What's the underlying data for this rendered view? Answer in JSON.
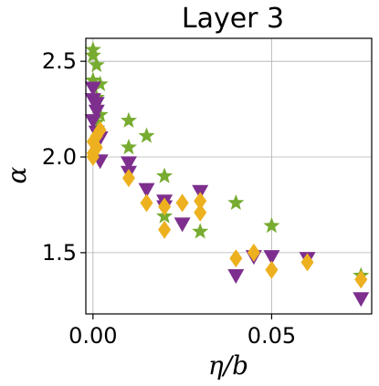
{
  "chart_data": {
    "type": "scatter",
    "title": "Layer 3",
    "xlabel": "η/b",
    "ylabel": "α",
    "xlim": [
      -0.002,
      0.078
    ],
    "ylim": [
      1.18,
      2.62
    ],
    "xticks": [
      0.0,
      0.05
    ],
    "xtick_labels": [
      "0.00",
      "0.05"
    ],
    "yticks": [
      1.5,
      2.0,
      2.5
    ],
    "ytick_labels": [
      "1.5",
      "2.0",
      "2.5"
    ],
    "grid": true,
    "legend": "none",
    "series": [
      {
        "marker": "star",
        "color": "#77ac30",
        "points": [
          [
            0.0,
            2.56
          ],
          [
            0.0,
            2.53
          ],
          [
            0.001,
            2.48
          ],
          [
            0.0,
            2.4
          ],
          [
            0.002,
            2.38
          ],
          [
            0.001,
            2.31
          ],
          [
            0.002,
            2.22
          ],
          [
            0.001,
            2.18
          ],
          [
            0.01,
            2.19
          ],
          [
            0.01,
            2.05
          ],
          [
            0.015,
            2.11
          ],
          [
            0.02,
            1.9
          ],
          [
            0.02,
            1.69
          ],
          [
            0.03,
            1.61
          ],
          [
            0.04,
            1.76
          ],
          [
            0.05,
            1.64
          ],
          [
            0.075,
            1.38
          ]
        ]
      },
      {
        "marker": "triangle-down",
        "color": "#7e2f8e",
        "points": [
          [
            0.0,
            2.36
          ],
          [
            0.0,
            2.3
          ],
          [
            0.001,
            2.28
          ],
          [
            0.001,
            2.24
          ],
          [
            0.0,
            2.19
          ],
          [
            0.001,
            2.13
          ],
          [
            0.002,
            2.1
          ],
          [
            0.002,
            1.98
          ],
          [
            0.01,
            1.97
          ],
          [
            0.01,
            1.92
          ],
          [
            0.015,
            1.83
          ],
          [
            0.02,
            1.77
          ],
          [
            0.02,
            1.74
          ],
          [
            0.025,
            1.65
          ],
          [
            0.03,
            1.82
          ],
          [
            0.04,
            1.38
          ],
          [
            0.045,
            1.48
          ],
          [
            0.05,
            1.48
          ],
          [
            0.06,
            1.47
          ],
          [
            0.075,
            1.26
          ]
        ]
      },
      {
        "marker": "diamond",
        "color": "#edb120",
        "points": [
          [
            0.0,
            2.08
          ],
          [
            0.0,
            2.02
          ],
          [
            0.0,
            2.0
          ],
          [
            0.001,
            2.05
          ],
          [
            0.001,
            2.11
          ],
          [
            0.002,
            2.14
          ],
          [
            0.01,
            1.89
          ],
          [
            0.015,
            1.76
          ],
          [
            0.02,
            1.62
          ],
          [
            0.02,
            1.74
          ],
          [
            0.025,
            1.76
          ],
          [
            0.03,
            1.77
          ],
          [
            0.03,
            1.71
          ],
          [
            0.04,
            1.47
          ],
          [
            0.045,
            1.5
          ],
          [
            0.05,
            1.41
          ],
          [
            0.06,
            1.45
          ],
          [
            0.075,
            1.36
          ]
        ]
      }
    ]
  }
}
